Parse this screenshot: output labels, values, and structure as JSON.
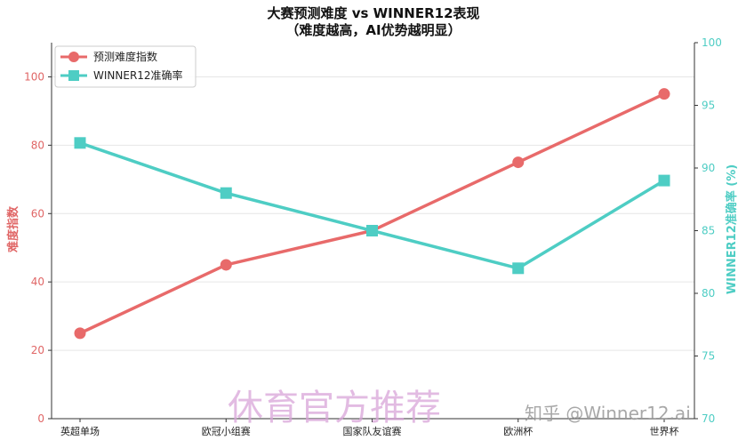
{
  "chart_data": {
    "type": "line",
    "title": "大赛预测难度 vs WINNER12表现",
    "subtitle": "（难度越高，AI优势越明显）",
    "categories": [
      "英超单场",
      "欧冠小组赛",
      "国家队友谊赛",
      "欧洲杯",
      "世界杯"
    ],
    "series": [
      {
        "name": "预测难度指数",
        "axis": "left",
        "values": [
          25,
          45,
          55,
          75,
          95
        ],
        "color": "#e86a6a",
        "marker": "circle"
      },
      {
        "name": "WINNER12准确率",
        "axis": "right",
        "values": [
          92,
          88,
          85,
          82,
          89
        ],
        "color": "#4ecdc4",
        "marker": "square"
      }
    ],
    "ylabel": "难度指数",
    "ylabel_right": "WINNER12准确率 (%)",
    "ylim": [
      0,
      110
    ],
    "ylim_right": [
      70,
      100
    ],
    "yticks": [
      0,
      20,
      40,
      60,
      80,
      100
    ],
    "yticks_right": [
      70,
      75,
      80,
      85,
      90,
      95,
      100
    ],
    "grid": true,
    "legend_position": "top-left"
  },
  "watermarks": {
    "main": "休育官方推荐",
    "secondary": "知乎 @Winner12.ai"
  }
}
